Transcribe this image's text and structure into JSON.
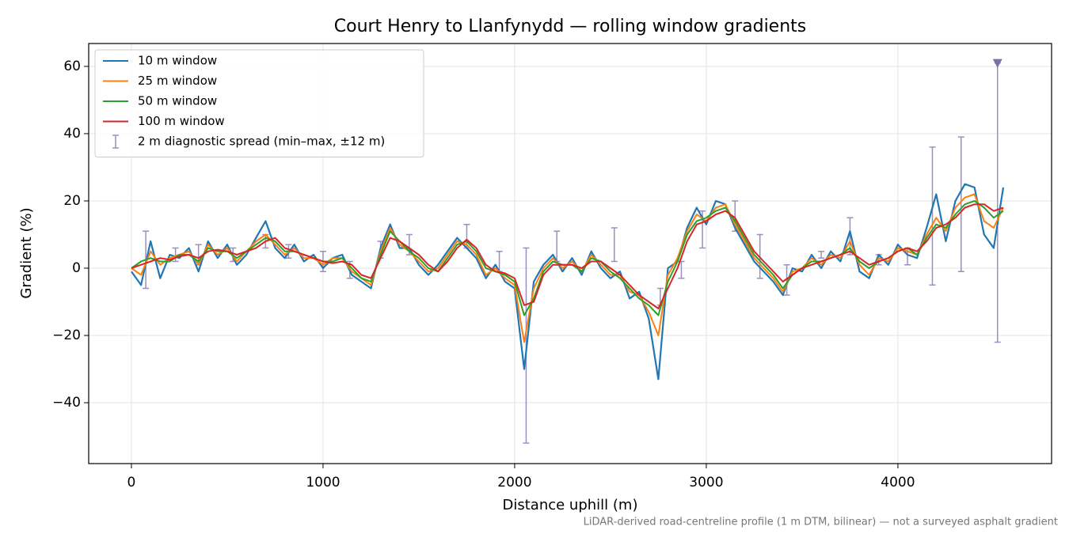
{
  "chart_data": {
    "type": "line",
    "title": "Court Henry to Llanfynydd — rolling window gradients",
    "x_label": "Distance uphill (m)",
    "y_label": "Gradient (%)",
    "footnote": "LiDAR-derived road-centreline profile (1 m DTM, bilinear) — not a surveyed asphalt gradient",
    "xlim": [
      -223,
      4802
    ],
    "xticks": [
      0,
      1000,
      2000,
      3000,
      4000
    ],
    "ylim": [
      -58.1,
      66.8
    ],
    "yticks": [
      {
        "value": -40,
        "label": "−40"
      },
      {
        "value": -20,
        "label": "−20"
      },
      0,
      20,
      40,
      60
    ],
    "grid": true,
    "legend": "upper-left",
    "x": [
      0,
      50,
      100,
      150,
      200,
      250,
      300,
      350,
      400,
      450,
      500,
      550,
      600,
      650,
      700,
      750,
      800,
      850,
      900,
      950,
      1000,
      1050,
      1100,
      1150,
      1200,
      1250,
      1300,
      1350,
      1400,
      1450,
      1500,
      1550,
      1600,
      1650,
      1700,
      1750,
      1800,
      1850,
      1900,
      1950,
      2000,
      2050,
      2100,
      2150,
      2200,
      2250,
      2300,
      2350,
      2400,
      2450,
      2500,
      2550,
      2600,
      2650,
      2700,
      2750,
      2800,
      2850,
      2900,
      2950,
      3000,
      3050,
      3100,
      3150,
      3200,
      3250,
      3300,
      3350,
      3400,
      3450,
      3500,
      3550,
      3600,
      3650,
      3700,
      3750,
      3800,
      3850,
      3900,
      3950,
      4000,
      4050,
      4100,
      4150,
      4200,
      4250,
      4300,
      4350,
      4400,
      4450,
      4500,
      4550
    ],
    "series": [
      {
        "name": "10 m window",
        "color": "#1f77b4",
        "values": [
          -1,
          -5,
          8,
          -3,
          4,
          3,
          6,
          -1,
          8,
          3,
          7,
          1,
          4,
          9,
          14,
          6,
          3,
          7,
          2,
          4,
          0,
          3,
          4,
          -2,
          -4,
          -6,
          6,
          13,
          6,
          6,
          1,
          -2,
          1,
          5,
          9,
          6,
          3,
          -3,
          1,
          -4,
          -6,
          -30,
          -4,
          1,
          4,
          -1,
          3,
          -2,
          5,
          0,
          -3,
          -1,
          -9,
          -7,
          -15,
          -33,
          0,
          2,
          12,
          18,
          13,
          20,
          19,
          12,
          7,
          2,
          -1,
          -4,
          -8,
          0,
          -1,
          4,
          0,
          5,
          2,
          11,
          -1,
          -3,
          4,
          1,
          7,
          4,
          3,
          12,
          22,
          8,
          20,
          25,
          24,
          10,
          6,
          24
        ]
      },
      {
        "name": "25 m window",
        "color": "#ff7f0e",
        "values": [
          0,
          -2,
          5,
          1,
          3,
          4,
          5,
          1,
          7,
          4,
          6,
          2,
          5,
          8,
          10,
          7,
          4,
          6,
          3,
          3,
          1,
          3,
          3,
          -1,
          -3,
          -5,
          5,
          12,
          7,
          5,
          2,
          -1,
          0,
          4,
          8,
          7,
          4,
          -2,
          0,
          -3,
          -5,
          -22,
          -6,
          0,
          3,
          0,
          2,
          -1,
          4,
          1,
          -2,
          -2,
          -7,
          -8,
          -13,
          -20,
          -2,
          3,
          11,
          16,
          14,
          18,
          19,
          13,
          8,
          3,
          0,
          -3,
          -7,
          -1,
          0,
          3,
          1,
          4,
          3,
          8,
          1,
          -2,
          3,
          2,
          6,
          5,
          4,
          10,
          15,
          11,
          18,
          21,
          22,
          14,
          12,
          18
        ]
      },
      {
        "name": "50 m window",
        "color": "#2ca02c",
        "values": [
          0,
          2,
          3,
          2,
          2,
          4,
          4,
          2,
          6,
          5,
          5,
          3,
          5,
          7,
          9,
          8,
          5,
          5,
          4,
          3,
          2,
          2,
          3,
          0,
          -3,
          -4,
          4,
          11,
          8,
          5,
          3,
          0,
          -1,
          3,
          7,
          8,
          5,
          0,
          -1,
          -2,
          -4,
          -14,
          -9,
          -1,
          2,
          1,
          1,
          -1,
          3,
          2,
          -1,
          -3,
          -6,
          -9,
          -11,
          -14,
          -4,
          2,
          10,
          14,
          15,
          17,
          18,
          14,
          9,
          4,
          1,
          -2,
          -6,
          -2,
          0,
          2,
          2,
          3,
          4,
          6,
          2,
          0,
          2,
          3,
          5,
          6,
          4,
          9,
          13,
          12,
          16,
          19,
          20,
          18,
          15,
          17
        ]
      },
      {
        "name": "100 m window",
        "color": "#d62728",
        "values": [
          0,
          1,
          2,
          3,
          2.5,
          3.5,
          4,
          3,
          5,
          5.5,
          5,
          4,
          5,
          6,
          8,
          9,
          6,
          5,
          4,
          3,
          2,
          1.5,
          2,
          1,
          -2,
          -3,
          3,
          9,
          8,
          6,
          4,
          1,
          -1,
          2,
          6,
          8.5,
          6,
          1,
          -1,
          -1.5,
          -3,
          -11,
          -10,
          -2,
          1,
          1,
          1,
          0,
          2,
          2,
          0,
          -2,
          -5,
          -8,
          -10,
          -12,
          -6,
          0,
          8,
          13,
          14,
          16,
          17,
          15,
          10,
          5,
          2,
          -1,
          -4,
          -2,
          0,
          1,
          2,
          3,
          4,
          5,
          3,
          1,
          2,
          3,
          5,
          6,
          5,
          8,
          12,
          13,
          15,
          18,
          19,
          19,
          17,
          18
        ]
      }
    ],
    "errorbars": {
      "name": "2 m diagnostic spread (min–max, ±12 m)",
      "color": "#9a8fbf",
      "x": [
        75,
        230,
        350,
        530,
        700,
        820,
        1000,
        1140,
        1300,
        1450,
        1750,
        1920,
        2060,
        2220,
        2520,
        2760,
        2870,
        2980,
        3150,
        3280,
        3420,
        3600,
        3750,
        3900,
        4050,
        4180,
        4330,
        4520
      ],
      "min": [
        -6,
        2,
        1,
        2,
        6,
        3,
        -1,
        -3,
        3,
        4,
        6,
        -1,
        -52,
        2,
        2,
        -11,
        -3,
        6,
        11,
        -3,
        -8,
        3,
        4,
        1,
        1,
        -5,
        -1,
        -22
      ],
      "max": [
        11,
        6,
        7,
        6,
        10,
        7,
        5,
        2,
        8,
        10,
        13,
        5,
        6,
        11,
        12,
        -6,
        2,
        17,
        20,
        10,
        1,
        5,
        15,
        4,
        6,
        36,
        39,
        61
      ]
    }
  }
}
